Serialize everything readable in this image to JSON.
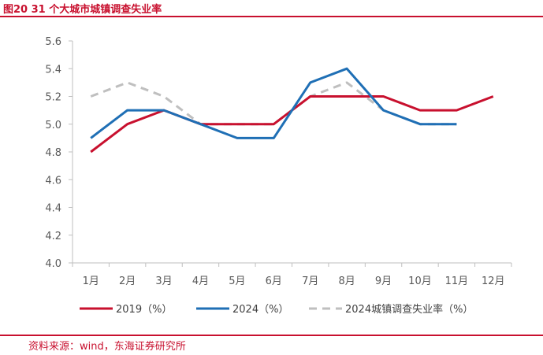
{
  "header": {
    "title": "图20  31 个大城市城镇调查失业率"
  },
  "footer": {
    "source": "资料来源：wind，东海证券研究所"
  },
  "chart_data": {
    "type": "line",
    "title": "31 个大城市城镇调查失业率",
    "categories": [
      "1月",
      "2月",
      "3月",
      "4月",
      "5月",
      "6月",
      "7月",
      "8月",
      "9月",
      "10月",
      "11月",
      "12月"
    ],
    "ylim": [
      4.0,
      5.6
    ],
    "yticks": [
      "4.0",
      "4.2",
      "4.4",
      "4.6",
      "4.8",
      "5.0",
      "5.2",
      "5.4",
      "5.6"
    ],
    "grid": false,
    "legend_position": "bottom",
    "series": [
      {
        "name": "2019（%）",
        "color": "#c8102e",
        "dash": false,
        "values": [
          4.8,
          5.0,
          5.1,
          5.0,
          5.0,
          5.0,
          5.2,
          5.2,
          5.2,
          5.1,
          5.1,
          5.2
        ]
      },
      {
        "name": "2024（%）",
        "color": "#1f6fb5",
        "dash": false,
        "values": [
          4.9,
          5.1,
          5.1,
          5.0,
          4.9,
          4.9,
          5.3,
          5.4,
          5.1,
          5.0,
          5.0,
          null
        ]
      },
      {
        "name": "2024城镇调查失业率（%）",
        "color": "#bfbfbf",
        "dash": true,
        "values": [
          5.2,
          5.3,
          5.2,
          5.0,
          5.0,
          5.0,
          5.2,
          5.3,
          5.1,
          5.0,
          5.0,
          null
        ]
      }
    ]
  }
}
